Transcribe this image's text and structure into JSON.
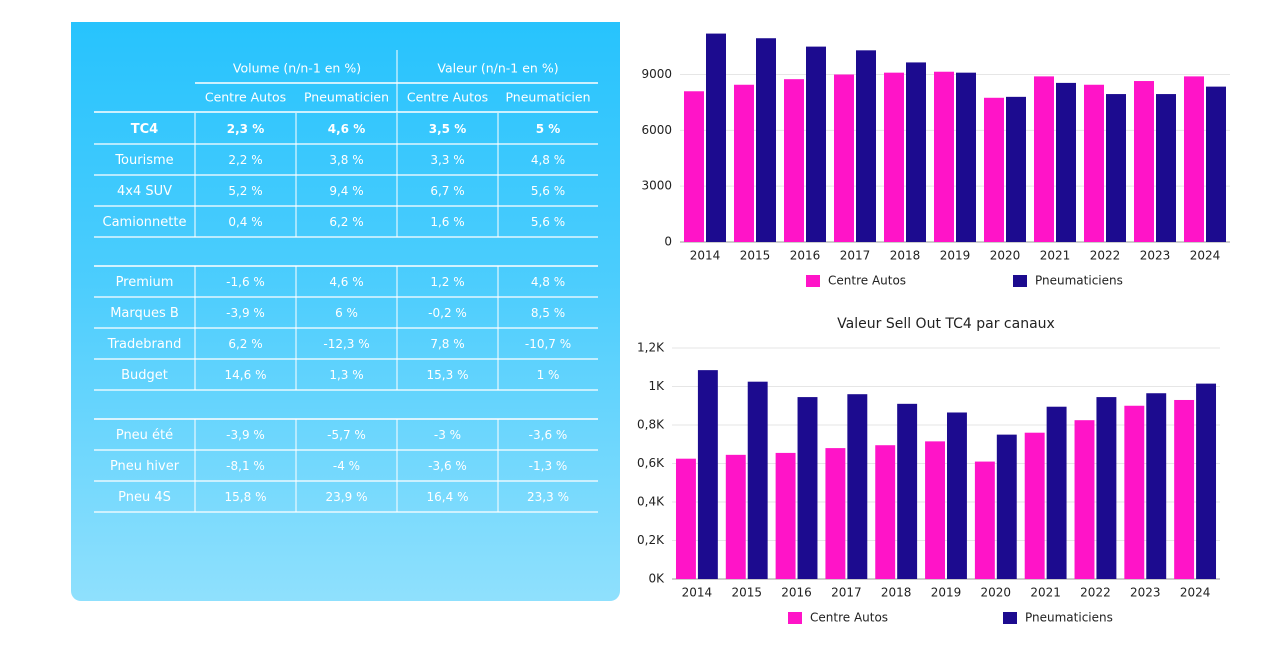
{
  "table": {
    "group_headers": [
      "Volume (n/n-1 en %)",
      "Valeur (n/n-1 en %)"
    ],
    "sub_headers": [
      "Centre Autos",
      "Pneumaticien",
      "Centre Autos",
      "Pneumaticien"
    ],
    "sections": [
      {
        "rows": [
          {
            "label": "TC4",
            "values": [
              "2,3 %",
              "4,6 %",
              "3,5 %",
              "5 %"
            ],
            "bold": true
          },
          {
            "label": "Tourisme",
            "values": [
              "2,2 %",
              "3,8 %",
              "3,3 %",
              "4,8 %"
            ]
          },
          {
            "label": "4x4 SUV",
            "values": [
              "5,2 %",
              "9,4 %",
              "6,7 %",
              "5,6 %"
            ]
          },
          {
            "label": "Camionnette",
            "values": [
              "0,4 %",
              "6,2 %",
              "1,6 %",
              "5,6 %"
            ]
          }
        ]
      },
      {
        "rows": [
          {
            "label": "Premium",
            "values": [
              "-1,6 %",
              "4,6 %",
              "1,2 %",
              "4,8 %"
            ]
          },
          {
            "label": "Marques B",
            "values": [
              "-3,9 %",
              "6 %",
              "-0,2 %",
              "8,5 %"
            ]
          },
          {
            "label": "Tradebrand",
            "values": [
              "6,2 %",
              "-12,3 %",
              "7,8 %",
              "-10,7 %"
            ]
          },
          {
            "label": "Budget",
            "values": [
              "14,6 %",
              "1,3 %",
              "15,3 %",
              "1 %"
            ]
          }
        ]
      },
      {
        "rows": [
          {
            "label": "Pneu été",
            "values": [
              "-3,9 %",
              "-5,7 %",
              "-3 %",
              "-3,6 %"
            ]
          },
          {
            "label": "Pneu hiver",
            "values": [
              "-8,1 %",
              "-4 %",
              "-3,6 %",
              "-1,3 %"
            ]
          },
          {
            "label": "Pneu 4S",
            "values": [
              "15,8 %",
              "23,9 %",
              "16,4 %",
              "23,3 %"
            ]
          }
        ]
      }
    ]
  },
  "chart_data": [
    {
      "type": "bar",
      "title": "",
      "categories": [
        "2014",
        "2015",
        "2016",
        "2017",
        "2018",
        "2019",
        "2020",
        "2021",
        "2022",
        "2023",
        "2024"
      ],
      "series": [
        {
          "name": "Centre Autos",
          "color": "#ff14c8",
          "values": [
            8100,
            8450,
            8750,
            9000,
            9100,
            9150,
            7750,
            8900,
            8450,
            8650,
            8900
          ]
        },
        {
          "name": "Pneumaticiens",
          "color": "#1c0b8f",
          "values": [
            11200,
            10950,
            10500,
            10300,
            9650,
            9100,
            7800,
            8550,
            7950,
            7950,
            8350
          ]
        }
      ],
      "ylim": [
        0,
        11500
      ],
      "yticks": [
        0,
        3000,
        6000,
        9000
      ],
      "ytick_labels": [
        "0",
        "3000",
        "6000",
        "9000"
      ],
      "grid": true,
      "legend": "bottom"
    },
    {
      "type": "bar",
      "title": "Valeur Sell Out TC4 par canaux",
      "categories": [
        "2014",
        "2015",
        "2016",
        "2017",
        "2018",
        "2019",
        "2020",
        "2021",
        "2022",
        "2023",
        "2024"
      ],
      "series": [
        {
          "name": "Centre Autos",
          "color": "#ff14c8",
          "values": [
            0.625,
            0.645,
            0.655,
            0.68,
            0.695,
            0.715,
            0.61,
            0.76,
            0.825,
            0.9,
            0.93
          ]
        },
        {
          "name": "Pneumaticiens",
          "color": "#1c0b8f",
          "values": [
            1.085,
            1.025,
            0.945,
            0.96,
            0.91,
            0.865,
            0.75,
            0.895,
            0.945,
            0.965,
            1.015
          ]
        }
      ],
      "ylim": [
        0,
        1.2
      ],
      "yticks": [
        0,
        0.2,
        0.4,
        0.6,
        0.8,
        1.0,
        1.2
      ],
      "ytick_labels": [
        "0K",
        "0,2K",
        "0,4K",
        "0,6K",
        "0,8K",
        "1K",
        "1,2K"
      ],
      "grid": true,
      "legend": "bottom"
    }
  ]
}
